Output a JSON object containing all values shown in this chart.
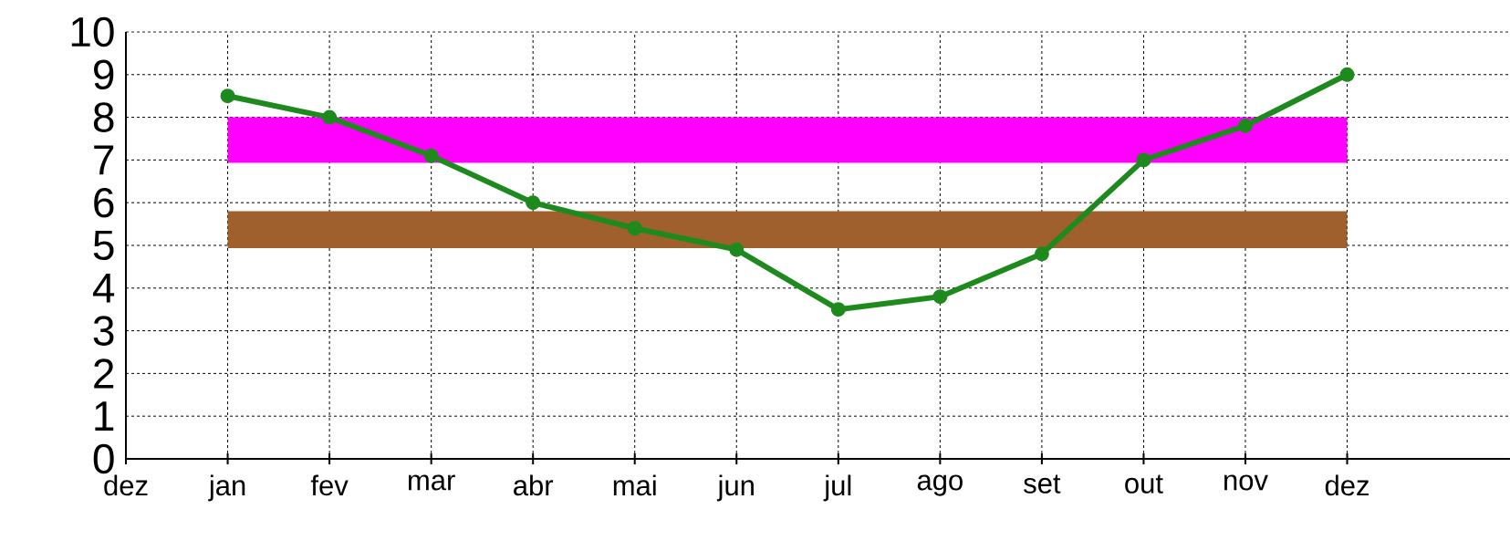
{
  "chart_data": {
    "type": "line",
    "categories": [
      "dez",
      "jan",
      "fev",
      "mar",
      "abr",
      "mai",
      "jun",
      "jul",
      "ago",
      "set",
      "out",
      "nov",
      "dez"
    ],
    "series": [
      {
        "color": "#ff00ff",
        "marker": "none",
        "values": [
          null,
          7,
          7,
          7,
          7,
          7,
          7,
          7,
          7,
          7,
          7,
          7,
          7
        ],
        "lower": [
          null,
          7,
          7,
          7,
          7,
          7,
          7,
          7,
          7,
          7,
          7,
          7,
          7
        ],
        "upper": [
          null,
          8,
          8,
          8,
          8,
          8,
          8,
          8,
          8,
          8,
          8,
          8,
          8
        ]
      },
      {
        "color": "#a0602d",
        "marker": "none",
        "values": [
          null,
          5,
          5,
          5,
          5,
          5,
          5,
          5,
          5,
          5,
          5,
          5,
          5
        ],
        "lower": [
          null,
          5,
          5,
          5,
          5,
          5,
          5,
          5,
          5,
          5,
          5,
          5,
          5
        ],
        "upper": [
          null,
          5.8,
          5.8,
          5.8,
          5.8,
          5.8,
          5.8,
          5.8,
          5.8,
          5.8,
          5.8,
          5.8,
          5.8
        ]
      },
      {
        "color": "#1e8a1e",
        "marker": "circle",
        "values": [
          null,
          8.5,
          8.0,
          7.1,
          6.0,
          5.4,
          4.9,
          3.5,
          3.8,
          4.8,
          7.0,
          7.8,
          9.0
        ]
      }
    ],
    "ylim": [
      0,
      10
    ],
    "yticks": [
      0,
      1,
      2,
      3,
      4,
      5,
      6,
      7,
      8,
      9,
      10
    ],
    "grid": true,
    "line_style": "solid"
  }
}
